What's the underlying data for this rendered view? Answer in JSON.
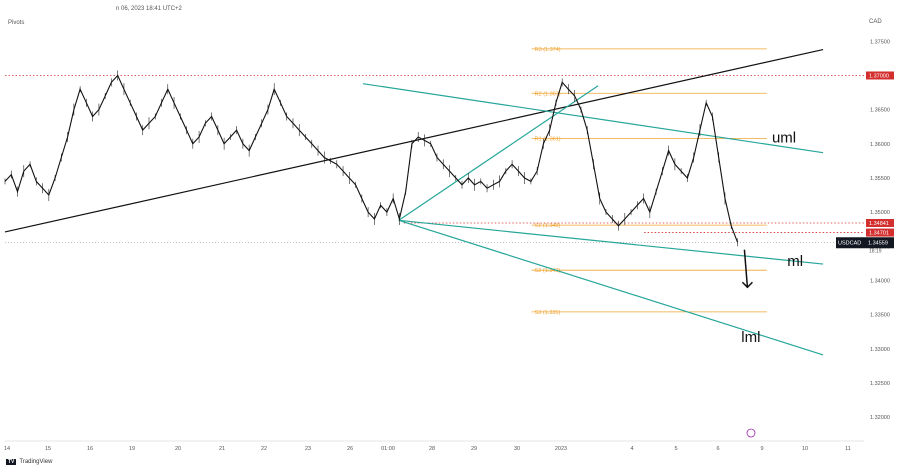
{
  "header": {
    "date_text": "n 06, 2023 18:41 UTC+2",
    "indicator": "Pivots",
    "currency": "CAD",
    "brand": "TradingView"
  },
  "chart_data": {
    "type": "line",
    "symbol": "USDCAD",
    "current_price": "1.34559",
    "countdown": "18:19",
    "ylim": [
      1.3165,
      1.379
    ],
    "y_ticks": [
      "1.37500",
      "1.37000",
      "1.36500",
      "1.36000",
      "1.35500",
      "1.35000",
      "1.34500",
      "1.34000",
      "1.33500",
      "1.33000",
      "1.32500",
      "1.32000"
    ],
    "x_ticks": [
      "14",
      "15",
      "16",
      "19",
      "20",
      "21",
      "22",
      "23",
      "26",
      "01:00",
      "28",
      "29",
      "30",
      "2023",
      "4",
      "5",
      "6",
      "9",
      "10",
      "11"
    ],
    "pivot_levels": [
      {
        "label": "R3 (1.374)",
        "value": 1.3739
      },
      {
        "label": "R2 (1.367)",
        "value": 1.3674
      },
      {
        "label": "R1 (1.361)",
        "value": 1.3608
      },
      {
        "label": "S1 (1.348)",
        "value": 1.3481
      },
      {
        "label": "S2 (1.342)",
        "value": 1.3415
      },
      {
        "label": "S3 (1.335)",
        "value": 1.3354
      }
    ],
    "price_labels": [
      {
        "text": "1.37000",
        "value": 1.37,
        "color": "#d32f2f"
      },
      {
        "text": "1.34841",
        "value": 1.34841,
        "color": "#d32f2f"
      },
      {
        "text": "1.34701",
        "value": 1.34701,
        "color": "#d32f2f"
      }
    ],
    "channel_labels": [
      "uml",
      "ml",
      "lml"
    ],
    "price_path": [
      1.3545,
      1.3555,
      1.353,
      1.356,
      1.357,
      1.3545,
      1.3535,
      1.3525,
      1.355,
      1.358,
      1.361,
      1.365,
      1.368,
      1.366,
      1.364,
      1.365,
      1.367,
      1.369,
      1.37,
      1.368,
      1.366,
      1.364,
      1.362,
      1.363,
      1.364,
      1.366,
      1.368,
      1.366,
      1.364,
      1.362,
      1.36,
      1.361,
      1.363,
      1.364,
      1.362,
      1.36,
      1.361,
      1.362,
      1.36,
      1.359,
      1.361,
      1.363,
      1.365,
      1.368,
      1.366,
      1.364,
      1.363,
      1.362,
      1.361,
      1.36,
      1.359,
      1.358,
      1.3575,
      1.357,
      1.356,
      1.355,
      1.354,
      1.352,
      1.35,
      1.349,
      1.351,
      1.35,
      1.352,
      1.349,
      1.353,
      1.36,
      1.361,
      1.3605,
      1.36,
      1.358,
      1.357,
      1.356,
      1.355,
      1.354,
      1.355,
      1.354,
      1.3545,
      1.3535,
      1.354,
      1.3545,
      1.356,
      1.357,
      1.356,
      1.355,
      1.3545,
      1.356,
      1.36,
      1.362,
      1.366,
      1.369,
      1.368,
      1.367,
      1.365,
      1.362,
      1.357,
      1.352,
      1.35,
      1.349,
      1.348,
      1.349,
      1.35,
      1.351,
      1.352,
      1.35,
      1.353,
      1.356,
      1.359,
      1.357,
      1.356,
      1.355,
      1.358,
      1.362,
      1.366,
      1.364,
      1.358,
      1.352,
      1.348,
      1.3456
    ],
    "trend_lines": [
      {
        "name": "",
        "color": "#111111",
        "points": [
          [
            0,
            1.3471
          ],
          [
            160,
            1.3738
          ]
        ]
      },
      {
        "name": "uml",
        "color": "#26a69a",
        "points": [
          [
            70,
            1.3688
          ],
          [
            160,
            1.3587
          ]
        ]
      },
      {
        "name": "ml",
        "color": "#26a69a",
        "points": [
          [
            77,
            1.3488
          ],
          [
            160,
            1.3424
          ]
        ]
      },
      {
        "name": "lml",
        "color": "#26a69a",
        "points": [
          [
            77,
            1.3488
          ],
          [
            160,
            1.3291
          ]
        ]
      },
      {
        "name": "",
        "color": "#26a69a",
        "points": [
          [
            77,
            1.3488
          ],
          [
            116,
            1.3685
          ]
        ]
      }
    ]
  }
}
